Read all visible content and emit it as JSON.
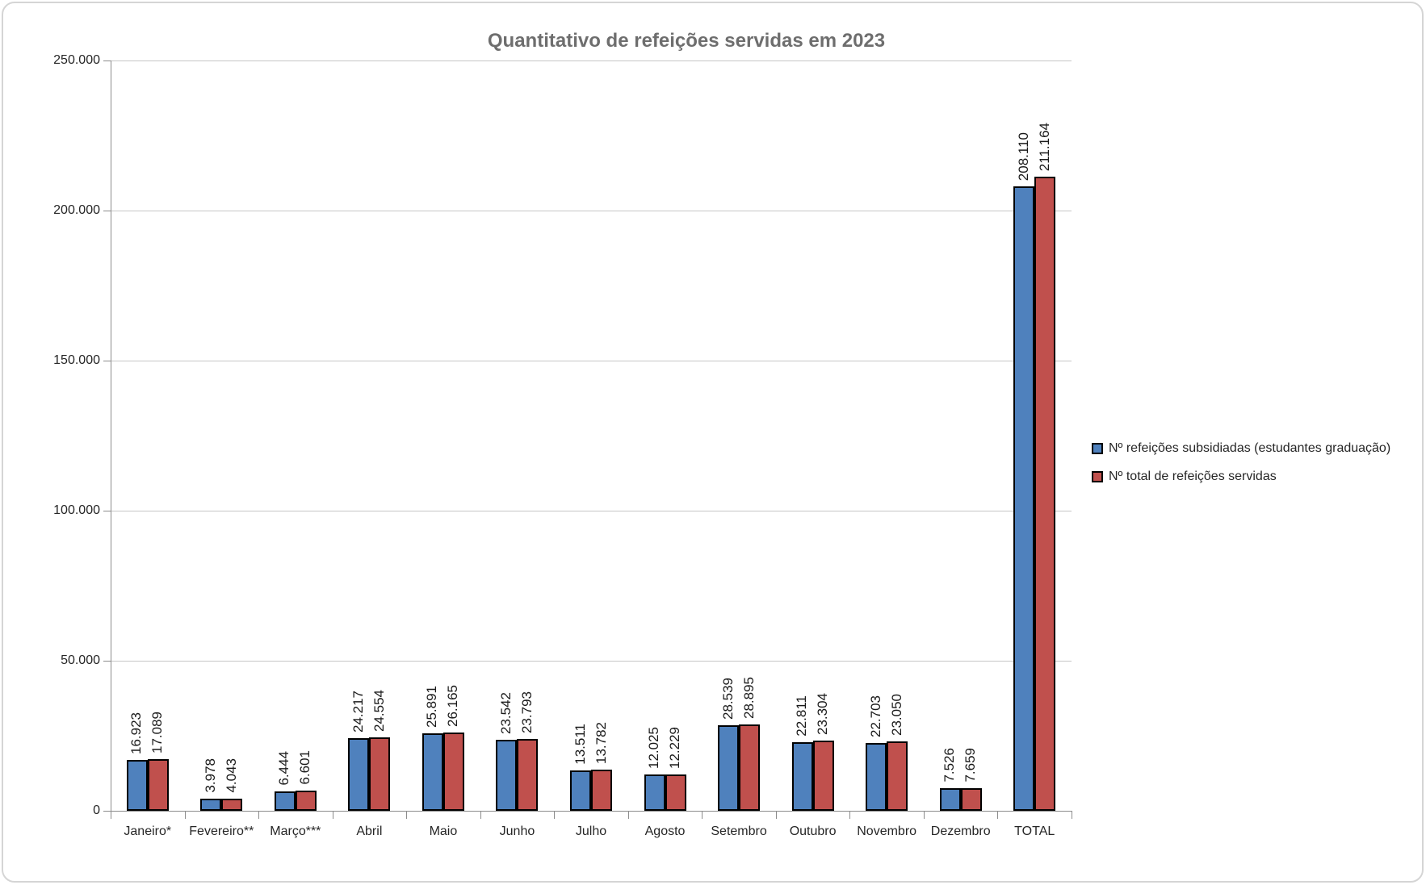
{
  "chart_data": {
    "type": "bar",
    "title": "Quantitativo de refeições servidas em 2023",
    "categories": [
      "Janeiro*",
      "Fevereiro**",
      "Março***",
      "Abril",
      "Maio",
      "Junho",
      "Julho",
      "Agosto",
      "Setembro",
      "Outubro",
      "Novembro",
      "Dezembro",
      "TOTAL"
    ],
    "series": [
      {
        "name": "Nº refeições subsidiadas (estudantes graduação)",
        "color": "#4f81bd",
        "values": [
          16923,
          3978,
          6444,
          24217,
          25891,
          23542,
          13511,
          12025,
          28539,
          22811,
          22703,
          7526,
          208110
        ],
        "labels": [
          "16.923",
          "3.978",
          "6.444",
          "24.217",
          "25.891",
          "23.542",
          "13.511",
          "12.025",
          "28.539",
          "22.811",
          "22.703",
          "7.526",
          "208.110"
        ]
      },
      {
        "name": "Nº total de refeições servidas",
        "color": "#c0504d",
        "values": [
          17089,
          4043,
          6601,
          24554,
          26165,
          23793,
          13782,
          12229,
          28895,
          23304,
          23050,
          7659,
          211164
        ],
        "labels": [
          "17.089",
          "4.043",
          "6.601",
          "24.554",
          "26.165",
          "23.793",
          "13.782",
          "12.229",
          "28.895",
          "23.304",
          "23.050",
          "7.659",
          "211.164"
        ]
      }
    ],
    "y_axis": {
      "min": 0,
      "max": 250000,
      "step": 50000,
      "tick_labels": [
        "0",
        "50.000",
        "100.000",
        "150.000",
        "200.000",
        "250.000"
      ]
    },
    "legend_position": "right",
    "grid": true,
    "bar_value_labels_rotation": "vertical"
  }
}
